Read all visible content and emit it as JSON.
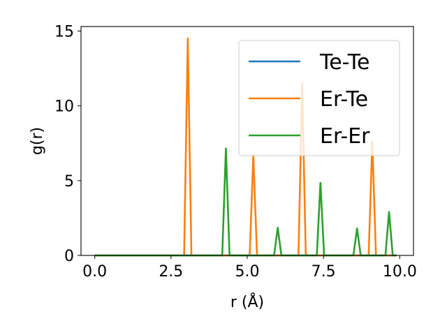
{
  "chart_data": {
    "type": "line",
    "xlabel": "r (Å)",
    "ylabel": "g(r)",
    "xlim": [
      -0.45,
      10.45
    ],
    "ylim": [
      0,
      15.3
    ],
    "xticks": [
      0.0,
      2.5,
      5.0,
      7.5,
      10.0
    ],
    "xtick_labels": [
      "0.0",
      "2.5",
      "5.0",
      "7.5",
      "10.0"
    ],
    "yticks": [
      0,
      5,
      10,
      15
    ],
    "ytick_labels": [
      "0",
      "5",
      "10",
      "15"
    ],
    "grid": false,
    "legend_position": "top-right",
    "x_range": [
      0.0,
      9.9
    ],
    "series": [
      {
        "name": "Te-Te",
        "color": "#1f77b4",
        "baseline": 0,
        "peaks": []
      },
      {
        "name": "Er-Te",
        "color": "#ff7f0e",
        "baseline": 0,
        "peaks": [
          {
            "x": 3.05,
            "y": 14.5
          },
          {
            "x": 5.2,
            "y": 6.7
          },
          {
            "x": 6.8,
            "y": 11.5
          },
          {
            "x": 9.1,
            "y": 7.6
          }
        ]
      },
      {
        "name": "Er-Er",
        "color": "#2ca02c",
        "baseline": 0,
        "peaks": [
          {
            "x": 4.3,
            "y": 7.15
          },
          {
            "x": 6.0,
            "y": 1.85
          },
          {
            "x": 7.4,
            "y": 4.85
          },
          {
            "x": 8.6,
            "y": 1.8
          },
          {
            "x": 9.65,
            "y": 2.9
          }
        ]
      }
    ]
  }
}
